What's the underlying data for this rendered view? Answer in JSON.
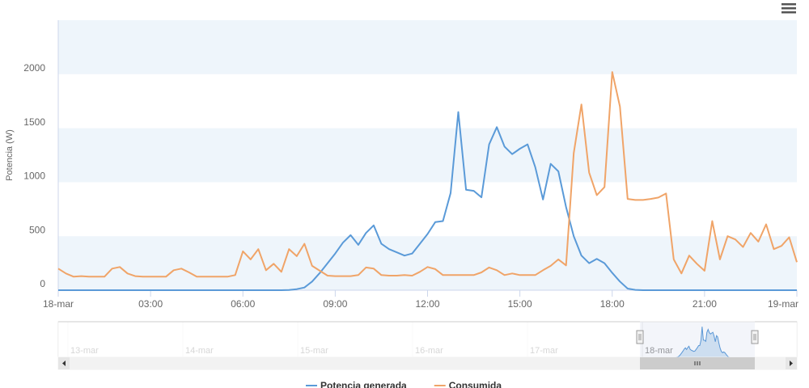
{
  "chart_data": {
    "type": "line",
    "y_axis_label": "Potencia (W)",
    "x": [
      0,
      0.25,
      0.5,
      0.75,
      1,
      1.25,
      1.5,
      1.75,
      2,
      2.25,
      2.5,
      2.75,
      3,
      3.25,
      3.5,
      3.75,
      4,
      4.25,
      4.5,
      4.75,
      5,
      5.25,
      5.5,
      5.75,
      6,
      6.25,
      6.5,
      6.75,
      7,
      7.25,
      7.5,
      7.75,
      8,
      8.25,
      8.5,
      8.75,
      9,
      9.25,
      9.5,
      9.75,
      10,
      10.25,
      10.5,
      10.75,
      11,
      11.25,
      11.5,
      11.75,
      12,
      12.25,
      12.5,
      12.75,
      13,
      13.25,
      13.5,
      13.75,
      14,
      14.25,
      14.5,
      14.75,
      15,
      15.25,
      15.5,
      15.75,
      16,
      16.25,
      16.5,
      16.75,
      17,
      17.25,
      17.5,
      17.75,
      18,
      18.25,
      18.5,
      18.75,
      19,
      19.25,
      19.5,
      19.75,
      20,
      20.25,
      20.5,
      20.75,
      21,
      21.25,
      21.5,
      21.75,
      22,
      22.25,
      22.5,
      22.75,
      23,
      23.25,
      23.5,
      23.75,
      24
    ],
    "series": [
      {
        "name": "Potencia generada",
        "color": "#5a9ad8",
        "values": [
          0,
          0,
          0,
          0,
          0,
          0,
          0,
          0,
          0,
          0,
          0,
          0,
          0,
          0,
          0,
          0,
          0,
          0,
          0,
          0,
          0,
          0,
          0,
          0,
          0,
          0,
          0,
          0,
          0,
          0,
          2,
          10,
          25,
          80,
          160,
          250,
          340,
          440,
          510,
          420,
          530,
          600,
          430,
          380,
          350,
          320,
          340,
          430,
          520,
          630,
          640,
          900,
          1650,
          930,
          920,
          860,
          1350,
          1510,
          1330,
          1260,
          1310,
          1350,
          1140,
          840,
          1170,
          1100,
          770,
          500,
          320,
          250,
          290,
          250,
          160,
          80,
          15,
          3,
          0,
          0,
          0,
          0,
          0,
          0,
          0,
          0,
          0,
          0,
          0,
          0,
          0,
          0,
          0,
          0,
          0,
          0,
          0,
          0,
          0
        ]
      },
      {
        "name": "Consumida",
        "color": "#f0a468",
        "values": [
          200,
          155,
          125,
          130,
          125,
          125,
          125,
          200,
          215,
          155,
          130,
          125,
          125,
          125,
          125,
          185,
          200,
          165,
          125,
          125,
          125,
          125,
          125,
          140,
          360,
          285,
          380,
          185,
          245,
          170,
          380,
          315,
          430,
          225,
          180,
          135,
          130,
          130,
          130,
          140,
          210,
          200,
          140,
          135,
          135,
          140,
          135,
          170,
          215,
          195,
          140,
          140,
          140,
          140,
          140,
          165,
          210,
          185,
          140,
          155,
          140,
          140,
          140,
          185,
          225,
          285,
          230,
          1270,
          1720,
          1090,
          880,
          955,
          2020,
          1700,
          845,
          835,
          835,
          845,
          858,
          895,
          285,
          155,
          320,
          245,
          180,
          640,
          285,
          500,
          470,
          400,
          530,
          450,
          610,
          380,
          410,
          490,
          260
        ]
      }
    ],
    "xlim": [
      0,
      24
    ],
    "xticks": [
      {
        "value": 0,
        "label": "18-mar"
      },
      {
        "value": 3,
        "label": "03:00"
      },
      {
        "value": 6,
        "label": "06:00"
      },
      {
        "value": 9,
        "label": "09:00"
      },
      {
        "value": 12,
        "label": "12:00"
      },
      {
        "value": 15,
        "label": "15:00"
      },
      {
        "value": 18,
        "label": "18:00"
      },
      {
        "value": 21,
        "label": "21:00"
      },
      {
        "value": 24,
        "label": "19-mar"
      }
    ],
    "ylim": [
      0,
      2500
    ],
    "yticks": [
      0,
      500,
      1000,
      1500,
      2000
    ],
    "alternate_grid_color": "#eef5fb",
    "navigator_labels": [
      "13-mar",
      "14-mar",
      "15-mar",
      "16-mar",
      "17-mar",
      "18-mar"
    ]
  }
}
